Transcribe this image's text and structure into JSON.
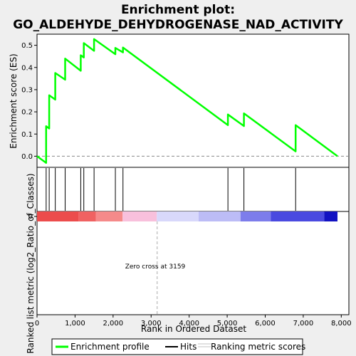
{
  "chart_data": {
    "type": "line",
    "title_line1": "Enrichment plot:",
    "title_line2": "GO_ALDEHYDE_DEHYDROGENASE_NAD_ACTIVITY",
    "es_ylabel": "Enrichment score (ES)",
    "rank_ylabel": "Ranked list metric (log2_Ratio_of_Classes)",
    "xlabel": "Rank in Ordered Dataset",
    "xlim": [
      0,
      8200
    ],
    "es_ylim": [
      -0.05,
      0.55
    ],
    "x_ticks": [
      0,
      1000,
      2000,
      3000,
      4000,
      5000,
      6000,
      7000,
      8000
    ],
    "x_tick_labels": [
      "0",
      "1,000",
      "2,000",
      "3,000",
      "4,000",
      "5,000",
      "6,000",
      "7,000",
      "8,000"
    ],
    "es_ticks": [
      0.0,
      0.1,
      0.2,
      0.3,
      0.4,
      0.5
    ],
    "es_tick_labels": [
      "0.0",
      "0.1",
      "0.2",
      "0.3",
      "0.4",
      "0.5"
    ],
    "rank_tick_labels": [
      "0"
    ],
    "hits": [
      240,
      320,
      480,
      740,
      1150,
      1230,
      1500,
      2060,
      2260,
      5020,
      5440,
      6800
    ],
    "enrichment_profile": {
      "x": [
        0,
        240,
        240,
        320,
        320,
        480,
        480,
        740,
        740,
        1150,
        1150,
        1230,
        1230,
        1500,
        1500,
        2060,
        2060,
        2260,
        2260,
        5020,
        5020,
        5440,
        5440,
        6800,
        6800,
        7900
      ],
      "y": [
        0.0,
        -0.03,
        0.135,
        0.125,
        0.275,
        0.255,
        0.375,
        0.345,
        0.44,
        0.385,
        0.455,
        0.445,
        0.51,
        0.475,
        0.528,
        0.46,
        0.488,
        0.468,
        0.49,
        0.14,
        0.188,
        0.136,
        0.193,
        0.022,
        0.14,
        0.0
      ]
    },
    "zero_cross_x": 3159,
    "zero_cross_label": "Zero cross at 3159",
    "color_bar": {
      "x_start": 0,
      "x_end": 7900,
      "segments": [
        {
          "from": 0,
          "to": 1100,
          "color": "#ec4c4c"
        },
        {
          "from": 1100,
          "to": 1550,
          "color": "#f06262"
        },
        {
          "from": 1550,
          "to": 2250,
          "color": "#f58a8a"
        },
        {
          "from": 2250,
          "to": 3150,
          "color": "#f8c0dc"
        },
        {
          "from": 3150,
          "to": 4250,
          "color": "#d8d8fb"
        },
        {
          "from": 4250,
          "to": 5350,
          "color": "#bcbcf6"
        },
        {
          "from": 5350,
          "to": 6150,
          "color": "#7d7deb"
        },
        {
          "from": 6150,
          "to": 7550,
          "color": "#4a4ae0"
        },
        {
          "from": 7550,
          "to": 7900,
          "color": "#1212c2"
        }
      ]
    },
    "legend": [
      {
        "label": "Enrichment profile",
        "color": "#00ff00"
      },
      {
        "label": "Hits",
        "color": "#000000"
      },
      {
        "label": "Ranking metric scores",
        "color": "#c0c0c0"
      }
    ],
    "grid": false,
    "legend_position": "bottom"
  }
}
